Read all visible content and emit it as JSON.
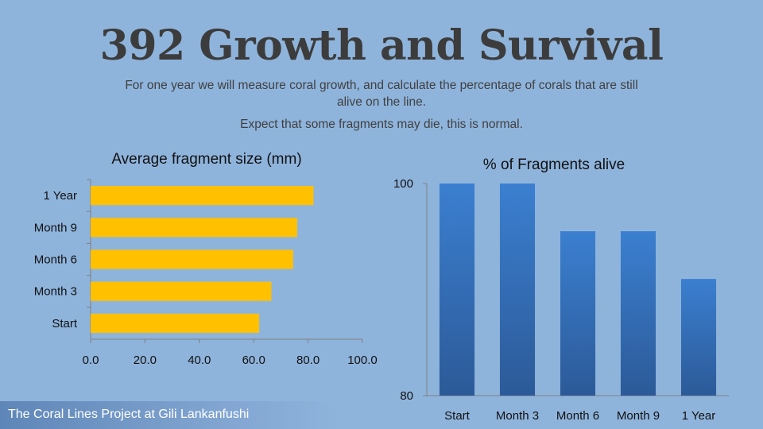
{
  "slide": {
    "title": "392 Growth and Survival",
    "intro": "For one year we will measure coral growth, and calculate the percentage of corals that are still alive on the line.",
    "note": "Expect that some fragments may die, this is normal.",
    "footer": "The Coral Lines Project at Gili Lankanfushi"
  },
  "colors": {
    "background": "#8fb4dc",
    "bar_yellow": "#ffc000",
    "bar_blue_top": "#3b7fd0",
    "bar_blue_bottom": "#2c5a98",
    "axis": "#7f7f7f"
  },
  "chart_data": [
    {
      "type": "bar",
      "orientation": "horizontal",
      "title": "Average fragment size (mm)",
      "categories": [
        "Start",
        "Month 3",
        "Month 6",
        "Month 9",
        "1 Year"
      ],
      "values": [
        62,
        66.5,
        74.5,
        76,
        82
      ],
      "xlim": [
        0,
        100
      ],
      "xticks": [
        "0.0",
        "20.0",
        "40.0",
        "60.0",
        "80.0",
        "100.0"
      ],
      "grid": false
    },
    {
      "type": "bar",
      "orientation": "vertical",
      "title": "% of Fragments alive",
      "categories": [
        "Start",
        "Month 3",
        "Month 6",
        "Month 9",
        "1 Year"
      ],
      "values": [
        100,
        100,
        95.5,
        95.5,
        91
      ],
      "ylim": [
        80,
        100
      ],
      "yticks": [
        "80",
        "100"
      ],
      "grid": false
    }
  ]
}
